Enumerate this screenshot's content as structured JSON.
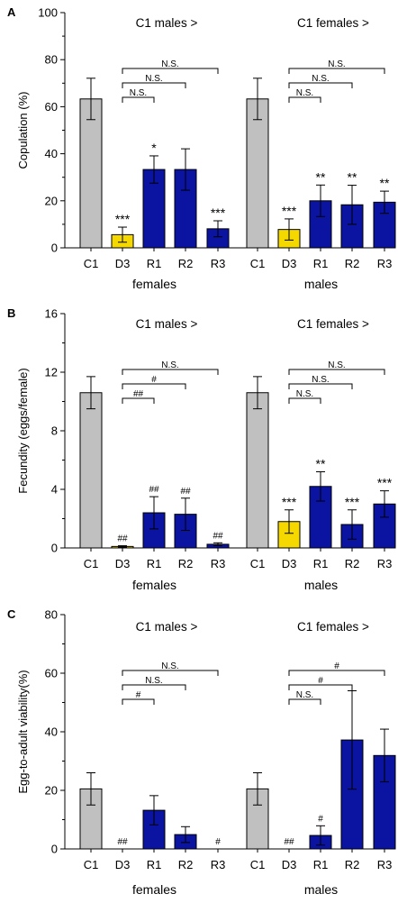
{
  "chart_data": [
    {
      "type": "bar",
      "panel_label": "A",
      "ylabel": "Copulation (%)",
      "ylim": [
        0,
        100
      ],
      "yticks": [
        0,
        20,
        40,
        60,
        80,
        100
      ],
      "groups": [
        {
          "name": "females",
          "header": "C1 males >",
          "categories": [
            "C1",
            "D3",
            "R1",
            "R2",
            "R3"
          ],
          "values": [
            63.3,
            5.6,
            33.3,
            33.3,
            8.1
          ],
          "errors": [
            8.8,
            3.2,
            5.8,
            8.8,
            3.4
          ],
          "bar_colors": [
            "#c0c0c0",
            "#f5d800",
            "#0a14a0",
            "#0a14a0",
            "#0a14a0"
          ],
          "marks": [
            "",
            "***",
            "*",
            "",
            "***"
          ],
          "comparisons": [
            {
              "from": "D3",
              "to": "R1",
              "label": "N.S."
            },
            {
              "from": "D3",
              "to": "R2",
              "label": "N.S."
            },
            {
              "from": "D3",
              "to": "R3",
              "label": "N.S."
            }
          ]
        },
        {
          "name": "males",
          "header": "C1 females >",
          "categories": [
            "C1",
            "D3",
            "R1",
            "R2",
            "R3"
          ],
          "values": [
            63.3,
            7.8,
            20.0,
            18.3,
            19.4
          ],
          "errors": [
            8.8,
            4.5,
            6.7,
            8.3,
            4.7
          ],
          "bar_colors": [
            "#c0c0c0",
            "#f5d800",
            "#0a14a0",
            "#0a14a0",
            "#0a14a0"
          ],
          "marks": [
            "",
            "***",
            "**",
            "**",
            "**"
          ],
          "comparisons": [
            {
              "from": "D3",
              "to": "R1",
              "label": "N.S."
            },
            {
              "from": "D3",
              "to": "R2",
              "label": "N.S."
            },
            {
              "from": "D3",
              "to": "R3",
              "label": "N.S."
            }
          ]
        }
      ]
    },
    {
      "type": "bar",
      "panel_label": "B",
      "ylabel": "Fecundity (eggs/female)",
      "ylim": [
        0,
        16
      ],
      "yticks": [
        0,
        4,
        8,
        12,
        16
      ],
      "groups": [
        {
          "name": "females",
          "header": "C1 males >",
          "categories": [
            "C1",
            "D3",
            "R1",
            "R2",
            "R3"
          ],
          "values": [
            10.6,
            0.1,
            2.4,
            2.3,
            0.25
          ],
          "errors": [
            1.1,
            0.05,
            1.1,
            1.1,
            0.1
          ],
          "bar_colors": [
            "#c0c0c0",
            "#f5d800",
            "#0a14a0",
            "#0a14a0",
            "#0a14a0"
          ],
          "marks": [
            "",
            "##",
            "##",
            "##",
            "##"
          ],
          "comparisons": [
            {
              "from": "D3",
              "to": "R1",
              "label": "##"
            },
            {
              "from": "D3",
              "to": "R2",
              "label": "#"
            },
            {
              "from": "D3",
              "to": "R3",
              "label": "N.S."
            }
          ]
        },
        {
          "name": "males",
          "header": "C1 females >",
          "categories": [
            "C1",
            "D3",
            "R1",
            "R2",
            "R3"
          ],
          "values": [
            10.6,
            1.8,
            4.2,
            1.6,
            3.0
          ],
          "errors": [
            1.1,
            0.8,
            1.0,
            1.0,
            0.9
          ],
          "bar_colors": [
            "#c0c0c0",
            "#f5d800",
            "#0a14a0",
            "#0a14a0",
            "#0a14a0"
          ],
          "marks": [
            "",
            "***",
            "**",
            "***",
            "***"
          ],
          "comparisons": [
            {
              "from": "D3",
              "to": "R1",
              "label": "N.S."
            },
            {
              "from": "D3",
              "to": "R2",
              "label": "N.S."
            },
            {
              "from": "D3",
              "to": "R3",
              "label": "N.S."
            }
          ]
        }
      ]
    },
    {
      "type": "bar",
      "panel_label": "C",
      "ylabel": "Egg-to-adult viability(%)",
      "ylim": [
        0,
        80
      ],
      "yticks": [
        0,
        20,
        40,
        60,
        80
      ],
      "groups": [
        {
          "name": "females",
          "header": "C1 males >",
          "categories": [
            "C1",
            "D3",
            "R1",
            "R2",
            "R3"
          ],
          "values": [
            20.5,
            0,
            13.2,
            4.9,
            0
          ],
          "errors": [
            5.5,
            0,
            5.0,
            2.7,
            0
          ],
          "bar_colors": [
            "#c0c0c0",
            "#f5d800",
            "#0a14a0",
            "#0a14a0",
            "#0a14a0"
          ],
          "marks": [
            "",
            "##",
            "",
            "",
            "#"
          ],
          "comparisons": [
            {
              "from": "D3",
              "to": "R1",
              "label": "#"
            },
            {
              "from": "D3",
              "to": "R2",
              "label": "N.S."
            },
            {
              "from": "D3",
              "to": "R3",
              "label": "N.S."
            }
          ]
        },
        {
          "name": "males",
          "header": "C1 females >",
          "categories": [
            "C1",
            "D3",
            "R1",
            "R2",
            "R3"
          ],
          "values": [
            20.5,
            0,
            4.6,
            37.2,
            31.9
          ],
          "errors": [
            5.5,
            0,
            3.3,
            16.8,
            9.0
          ],
          "bar_colors": [
            "#c0c0c0",
            "#f5d800",
            "#0a14a0",
            "#0a14a0",
            "#0a14a0"
          ],
          "marks": [
            "",
            "##",
            "#",
            "",
            ""
          ],
          "comparisons": [
            {
              "from": "D3",
              "to": "R1",
              "label": "N.S."
            },
            {
              "from": "D3",
              "to": "R2",
              "label": "#"
            },
            {
              "from": "D3",
              "to": "R3",
              "label": "#"
            }
          ]
        }
      ]
    }
  ]
}
